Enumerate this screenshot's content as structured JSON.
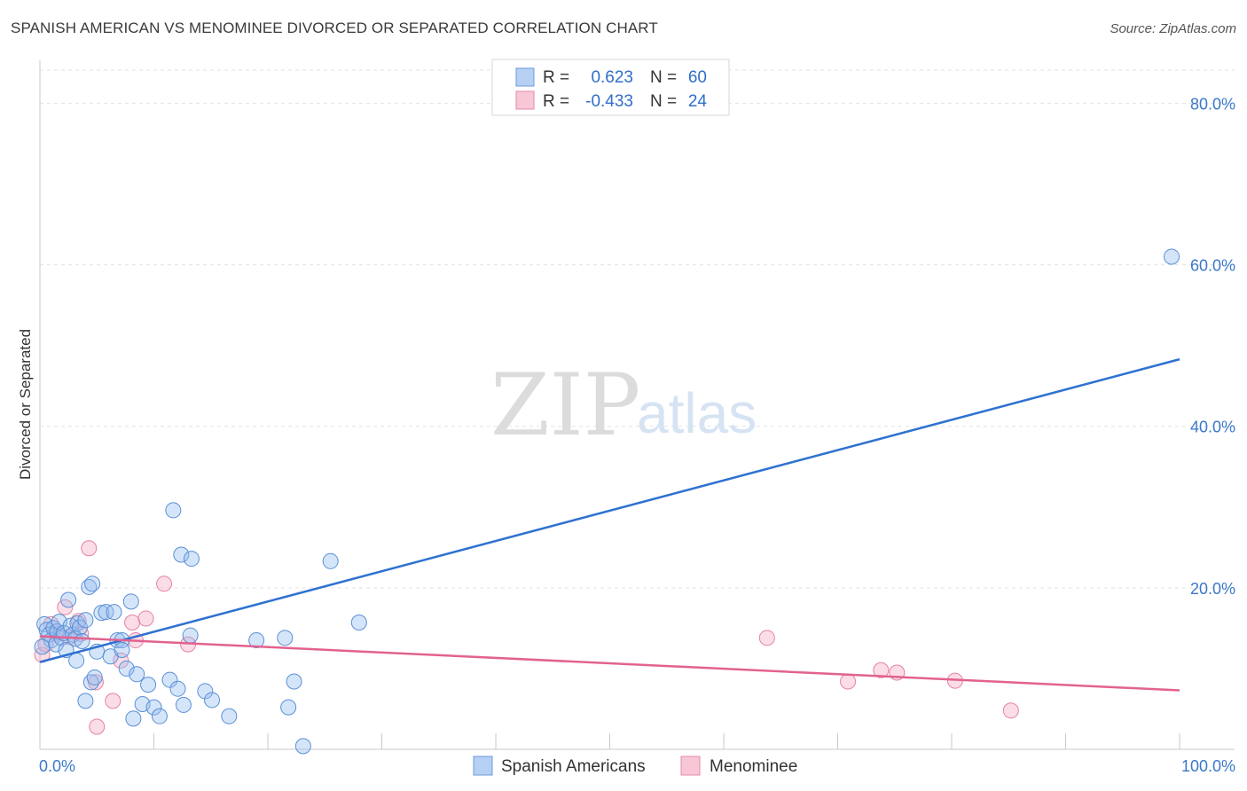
{
  "header": {
    "title": "SPANISH AMERICAN VS MENOMINEE DIVORCED OR SEPARATED CORRELATION CHART",
    "source": "Source: ZipAtlas.com"
  },
  "watermark": {
    "zip": "ZIP",
    "atlas": "atlas"
  },
  "colors": {
    "blue": "#2f72d0",
    "blue_fill": "#a9c8f0",
    "pink": "#e2628f",
    "pink_fill": "#f5b8cc",
    "tick_text": "#3a78c9",
    "grid": "#dddddd"
  },
  "legend": {
    "rows": [
      {
        "r_label": "R =",
        "r_value": "0.623",
        "n_label": "N =",
        "n_value": "60"
      },
      {
        "r_label": "R =",
        "r_value": "-0.433",
        "n_label": "N =",
        "n_value": "24"
      }
    ]
  },
  "chart_data": {
    "type": "scatter",
    "title": "SPANISH AMERICAN VS MENOMINEE DIVORCED OR SEPARATED CORRELATION CHART",
    "ylabel": "Divorced or Separated",
    "xlabel": "",
    "xlim": [
      0,
      100
    ],
    "ylim": [
      0,
      84
    ],
    "x_tick_labels": [
      "0.0%",
      "100.0%"
    ],
    "y_ticks": [
      20,
      40,
      60,
      80
    ],
    "y_tick_labels": [
      "20.0%",
      "40.0%",
      "60.0%",
      "80.0%"
    ],
    "grid": true,
    "legend_position": "top-center",
    "series": [
      {
        "name": "Spanish Americans",
        "color": "#2f72d0",
        "r": 0.623,
        "n": 60,
        "trend": {
          "x": [
            0,
            100
          ],
          "y": [
            10.8,
            48.3
          ]
        },
        "points": [
          [
            0.4,
            15.5
          ],
          [
            0.6,
            14.8
          ],
          [
            0.8,
            14.2
          ],
          [
            1.0,
            13.5
          ],
          [
            1.2,
            15.0
          ],
          [
            1.4,
            13.0
          ],
          [
            1.5,
            14.6
          ],
          [
            1.7,
            15.8
          ],
          [
            1.9,
            13.8
          ],
          [
            2.1,
            14.4
          ],
          [
            2.3,
            12.3
          ],
          [
            2.5,
            18.5
          ],
          [
            2.7,
            15.3
          ],
          [
            2.9,
            14.2
          ],
          [
            3.1,
            13.7
          ],
          [
            3.3,
            15.6
          ],
          [
            3.5,
            15.1
          ],
          [
            3.7,
            13.4
          ],
          [
            4.0,
            16.0
          ],
          [
            4.3,
            20.1
          ],
          [
            4.6,
            20.5
          ],
          [
            5.0,
            12.1
          ],
          [
            5.4,
            16.9
          ],
          [
            5.8,
            17.0
          ],
          [
            6.2,
            11.5
          ],
          [
            6.5,
            17.0
          ],
          [
            6.8,
            13.5
          ],
          [
            7.2,
            13.5
          ],
          [
            7.6,
            10.0
          ],
          [
            8.0,
            18.3
          ],
          [
            3.2,
            11.0
          ],
          [
            4.0,
            6.0
          ],
          [
            4.5,
            8.3
          ],
          [
            4.8,
            8.9
          ],
          [
            7.2,
            12.3
          ],
          [
            8.5,
            9.3
          ],
          [
            9.0,
            5.6
          ],
          [
            9.5,
            8.0
          ],
          [
            10.0,
            5.2
          ],
          [
            10.5,
            4.1
          ],
          [
            8.2,
            3.8
          ],
          [
            11.4,
            8.6
          ],
          [
            12.1,
            7.5
          ],
          [
            12.6,
            5.5
          ],
          [
            13.2,
            14.1
          ],
          [
            14.5,
            7.2
          ],
          [
            15.1,
            6.1
          ],
          [
            16.6,
            4.1
          ],
          [
            19.0,
            13.5
          ],
          [
            21.5,
            13.8
          ],
          [
            21.8,
            5.2
          ],
          [
            22.3,
            8.4
          ],
          [
            23.1,
            0.4
          ],
          [
            25.5,
            23.3
          ],
          [
            28.0,
            15.7
          ],
          [
            11.7,
            29.6
          ],
          [
            12.4,
            24.1
          ],
          [
            13.3,
            23.6
          ],
          [
            0.2,
            12.7
          ],
          [
            99.3,
            61.0
          ]
        ]
      },
      {
        "name": "Menominee",
        "color": "#e2628f",
        "r": -0.433,
        "n": 24,
        "trend": {
          "x": [
            0,
            100
          ],
          "y": [
            14.0,
            7.3
          ]
        },
        "points": [
          [
            0.2,
            11.7
          ],
          [
            0.5,
            13.0
          ],
          [
            1.0,
            15.5
          ],
          [
            1.6,
            14.3
          ],
          [
            2.2,
            17.6
          ],
          [
            2.6,
            13.9
          ],
          [
            3.4,
            15.9
          ],
          [
            3.6,
            14.3
          ],
          [
            4.3,
            24.9
          ],
          [
            4.9,
            8.3
          ],
          [
            5.0,
            2.8
          ],
          [
            6.4,
            6.0
          ],
          [
            7.1,
            11.0
          ],
          [
            8.1,
            15.7
          ],
          [
            8.4,
            13.5
          ],
          [
            9.3,
            16.2
          ],
          [
            10.9,
            20.5
          ],
          [
            13.0,
            13.0
          ],
          [
            63.8,
            13.8
          ],
          [
            70.9,
            8.4
          ],
          [
            73.8,
            9.8
          ],
          [
            75.2,
            9.5
          ],
          [
            80.3,
            8.5
          ],
          [
            85.2,
            4.8
          ]
        ]
      }
    ]
  }
}
